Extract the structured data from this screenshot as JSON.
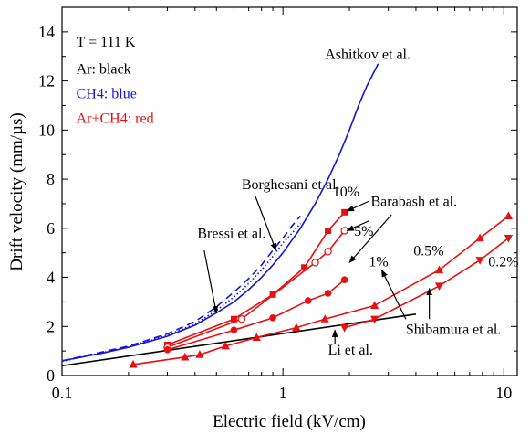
{
  "chart_data": {
    "type": "line",
    "xlabel": "Electric field (kV/cm)",
    "ylabel": "Drift velocity (mm/µs)",
    "xscale": "log",
    "xlim": [
      0.1,
      11.5
    ],
    "ylim": [
      0,
      15
    ],
    "xticks": [
      {
        "value": 0.1,
        "label": "0.1"
      },
      {
        "value": 1,
        "label": "1"
      },
      {
        "value": 10,
        "label": "10"
      }
    ],
    "yticks": [
      0,
      2,
      4,
      6,
      8,
      10,
      12,
      14
    ],
    "grid": false,
    "colors": {
      "ar": "#000000",
      "ch4": "#1515d8",
      "mix": "#e81010"
    },
    "legend_text": [
      {
        "text": "T = 111 K",
        "color": "#000000",
        "x": 0.116,
        "y": 13.4
      },
      {
        "text": "Ar: black",
        "color": "#000000",
        "x": 0.116,
        "y": 12.3
      },
      {
        "text": "CH4: blue",
        "color": "#1515d8",
        "x": 0.116,
        "y": 11.3
      },
      {
        "text": "Ar+CH4: red",
        "color": "#e81010",
        "x": 0.116,
        "y": 10.3
      }
    ],
    "series": [
      {
        "name": "Ashitkov et al.",
        "group": "ch4",
        "style": "solid",
        "marker": "none",
        "points": [
          [
            0.1,
            0.6
          ],
          [
            0.15,
            0.9
          ],
          [
            0.2,
            1.15
          ],
          [
            0.3,
            1.6
          ],
          [
            0.4,
            2.05
          ],
          [
            0.5,
            2.55
          ],
          [
            0.6,
            3.0
          ],
          [
            0.7,
            3.5
          ],
          [
            0.8,
            4.0
          ],
          [
            0.9,
            4.5
          ],
          [
            1.0,
            5.0
          ],
          [
            1.2,
            6.0
          ],
          [
            1.4,
            7.0
          ],
          [
            1.6,
            8.0
          ],
          [
            1.8,
            9.0
          ],
          [
            2.0,
            10.0
          ],
          [
            2.2,
            11.0
          ],
          [
            2.4,
            11.8
          ],
          [
            2.7,
            12.7
          ]
        ]
      },
      {
        "name": "Borghesani et al.",
        "group": "ch4",
        "style": "dashed",
        "marker": "none",
        "points": [
          [
            0.1,
            0.6
          ],
          [
            0.15,
            0.95
          ],
          [
            0.2,
            1.2
          ],
          [
            0.3,
            1.7
          ],
          [
            0.4,
            2.2
          ],
          [
            0.5,
            2.8
          ],
          [
            0.6,
            3.4
          ],
          [
            0.7,
            3.95
          ],
          [
            0.8,
            4.5
          ],
          [
            0.9,
            5.1
          ],
          [
            1.0,
            5.6
          ],
          [
            1.1,
            6.1
          ],
          [
            1.2,
            6.5
          ]
        ]
      },
      {
        "name": "Bressi et al.",
        "group": "ch4",
        "style": "dotted",
        "marker": "none",
        "points": [
          [
            0.1,
            0.58
          ],
          [
            0.15,
            0.92
          ],
          [
            0.2,
            1.17
          ],
          [
            0.3,
            1.65
          ],
          [
            0.4,
            2.1
          ],
          [
            0.5,
            2.65
          ],
          [
            0.6,
            3.2
          ],
          [
            0.7,
            3.75
          ],
          [
            0.8,
            4.3
          ],
          [
            0.9,
            4.85
          ],
          [
            1.0,
            5.4
          ],
          [
            1.1,
            5.8
          ],
          [
            1.2,
            6.2
          ]
        ]
      },
      {
        "name": "Li et al.",
        "group": "ar",
        "style": "solid",
        "marker": "none",
        "points": [
          [
            0.1,
            0.4
          ],
          [
            4.0,
            2.5
          ]
        ]
      },
      {
        "name": "10%",
        "group": "mix",
        "style": "solid",
        "marker": "square-filled",
        "points": [
          [
            0.3,
            1.25
          ],
          [
            0.6,
            2.3
          ],
          [
            0.9,
            3.3
          ],
          [
            1.25,
            4.4
          ],
          [
            1.6,
            5.9
          ],
          [
            1.9,
            6.65
          ]
        ]
      },
      {
        "name": "5%",
        "group": "mix",
        "style": "solid",
        "marker": "circle-open",
        "points": [
          [
            0.3,
            1.15
          ],
          [
            0.65,
            2.3
          ],
          [
            1.4,
            4.6
          ],
          [
            1.6,
            5.05
          ],
          [
            1.9,
            5.9
          ]
        ]
      },
      {
        "name": "1%",
        "group": "mix",
        "style": "solid",
        "marker": "circle-filled",
        "points": [
          [
            0.3,
            1.05
          ],
          [
            0.6,
            1.85
          ],
          [
            0.9,
            2.35
          ],
          [
            1.3,
            3.05
          ],
          [
            1.6,
            3.35
          ],
          [
            1.9,
            3.9
          ]
        ]
      },
      {
        "name": "0.5%",
        "group": "mix",
        "style": "solid",
        "marker": "triangle-up",
        "points": [
          [
            0.21,
            0.45
          ],
          [
            0.36,
            0.75
          ],
          [
            0.42,
            0.85
          ],
          [
            0.55,
            1.2
          ],
          [
            0.76,
            1.55
          ],
          [
            1.15,
            1.95
          ],
          [
            1.55,
            2.3
          ],
          [
            2.6,
            2.85
          ],
          [
            5.1,
            4.3
          ],
          [
            7.8,
            5.6
          ],
          [
            10.5,
            6.5
          ]
        ]
      },
      {
        "name": "0.2%",
        "group": "mix",
        "style": "solid",
        "marker": "triangle-down",
        "points": [
          [
            1.9,
            1.95
          ],
          [
            2.6,
            2.3
          ],
          [
            5.1,
            3.65
          ],
          [
            7.8,
            4.7
          ],
          [
            10.5,
            5.6
          ]
        ]
      }
    ],
    "annotations": [
      {
        "id": "ashitkov",
        "text": "Ashitkov et al.",
        "color": "#000000",
        "x": 1.55,
        "y": 12.9,
        "arrow": null
      },
      {
        "id": "borghesani",
        "text": "Borghesani et al.",
        "color": "#000000",
        "x": 0.65,
        "y": 7.6,
        "arrow": {
          "from": [
            0.75,
            7.3
          ],
          "to": [
            0.93,
            5.1
          ]
        }
      },
      {
        "id": "bressi",
        "text": "Bressi et al.",
        "color": "#000000",
        "x": 0.41,
        "y": 5.6,
        "arrow": {
          "from": [
            0.44,
            5.1
          ],
          "to": [
            0.5,
            2.55
          ]
        }
      },
      {
        "id": "barabash",
        "text": "Barabash et al.",
        "color": "#000000",
        "x": 2.5,
        "y": 6.9,
        "arrow": {
          "from": [
            3.1,
            6.55
          ],
          "to": [
            2.0,
            4.6
          ]
        }
      },
      {
        "id": "li",
        "text": "Li et al.",
        "color": "#000000",
        "x": 1.6,
        "y": 0.85,
        "arrow": {
          "from": [
            1.72,
            1.3
          ],
          "to": [
            1.72,
            1.85
          ]
        }
      },
      {
        "id": "shibamura",
        "text": "Shibamura et al.",
        "color": "#000000",
        "x": 3.6,
        "y": 1.7,
        "arrow": null
      },
      {
        "id": "label10",
        "text": "10%",
        "color": "#000000",
        "x": 1.68,
        "y": 7.3,
        "arrow": null
      },
      {
        "id": "label5",
        "text": "5%",
        "color": "#000000",
        "x": 2.1,
        "y": 5.7,
        "arrow": null
      },
      {
        "id": "label1",
        "text": "1%",
        "color": "#000000",
        "x": 2.45,
        "y": 4.45,
        "arrow": null
      },
      {
        "id": "label05",
        "text": "0.5%",
        "color": "#000000",
        "x": 3.9,
        "y": 4.9,
        "arrow": null
      },
      {
        "id": "label02",
        "text": "0.2%",
        "color": "#000000",
        "x": 8.5,
        "y": 4.45,
        "arrow": null
      }
    ],
    "extra_arrows": [
      {
        "from": [
          2.45,
          7.1
        ],
        "to": [
          1.95,
          6.7
        ]
      },
      {
        "from": [
          2.45,
          6.3
        ],
        "to": [
          1.95,
          5.9
        ]
      },
      {
        "from": [
          3.6,
          2.3
        ],
        "to": [
          2.8,
          4.3
        ]
      },
      {
        "from": [
          4.6,
          2.3
        ],
        "to": [
          4.6,
          3.55
        ]
      }
    ]
  }
}
